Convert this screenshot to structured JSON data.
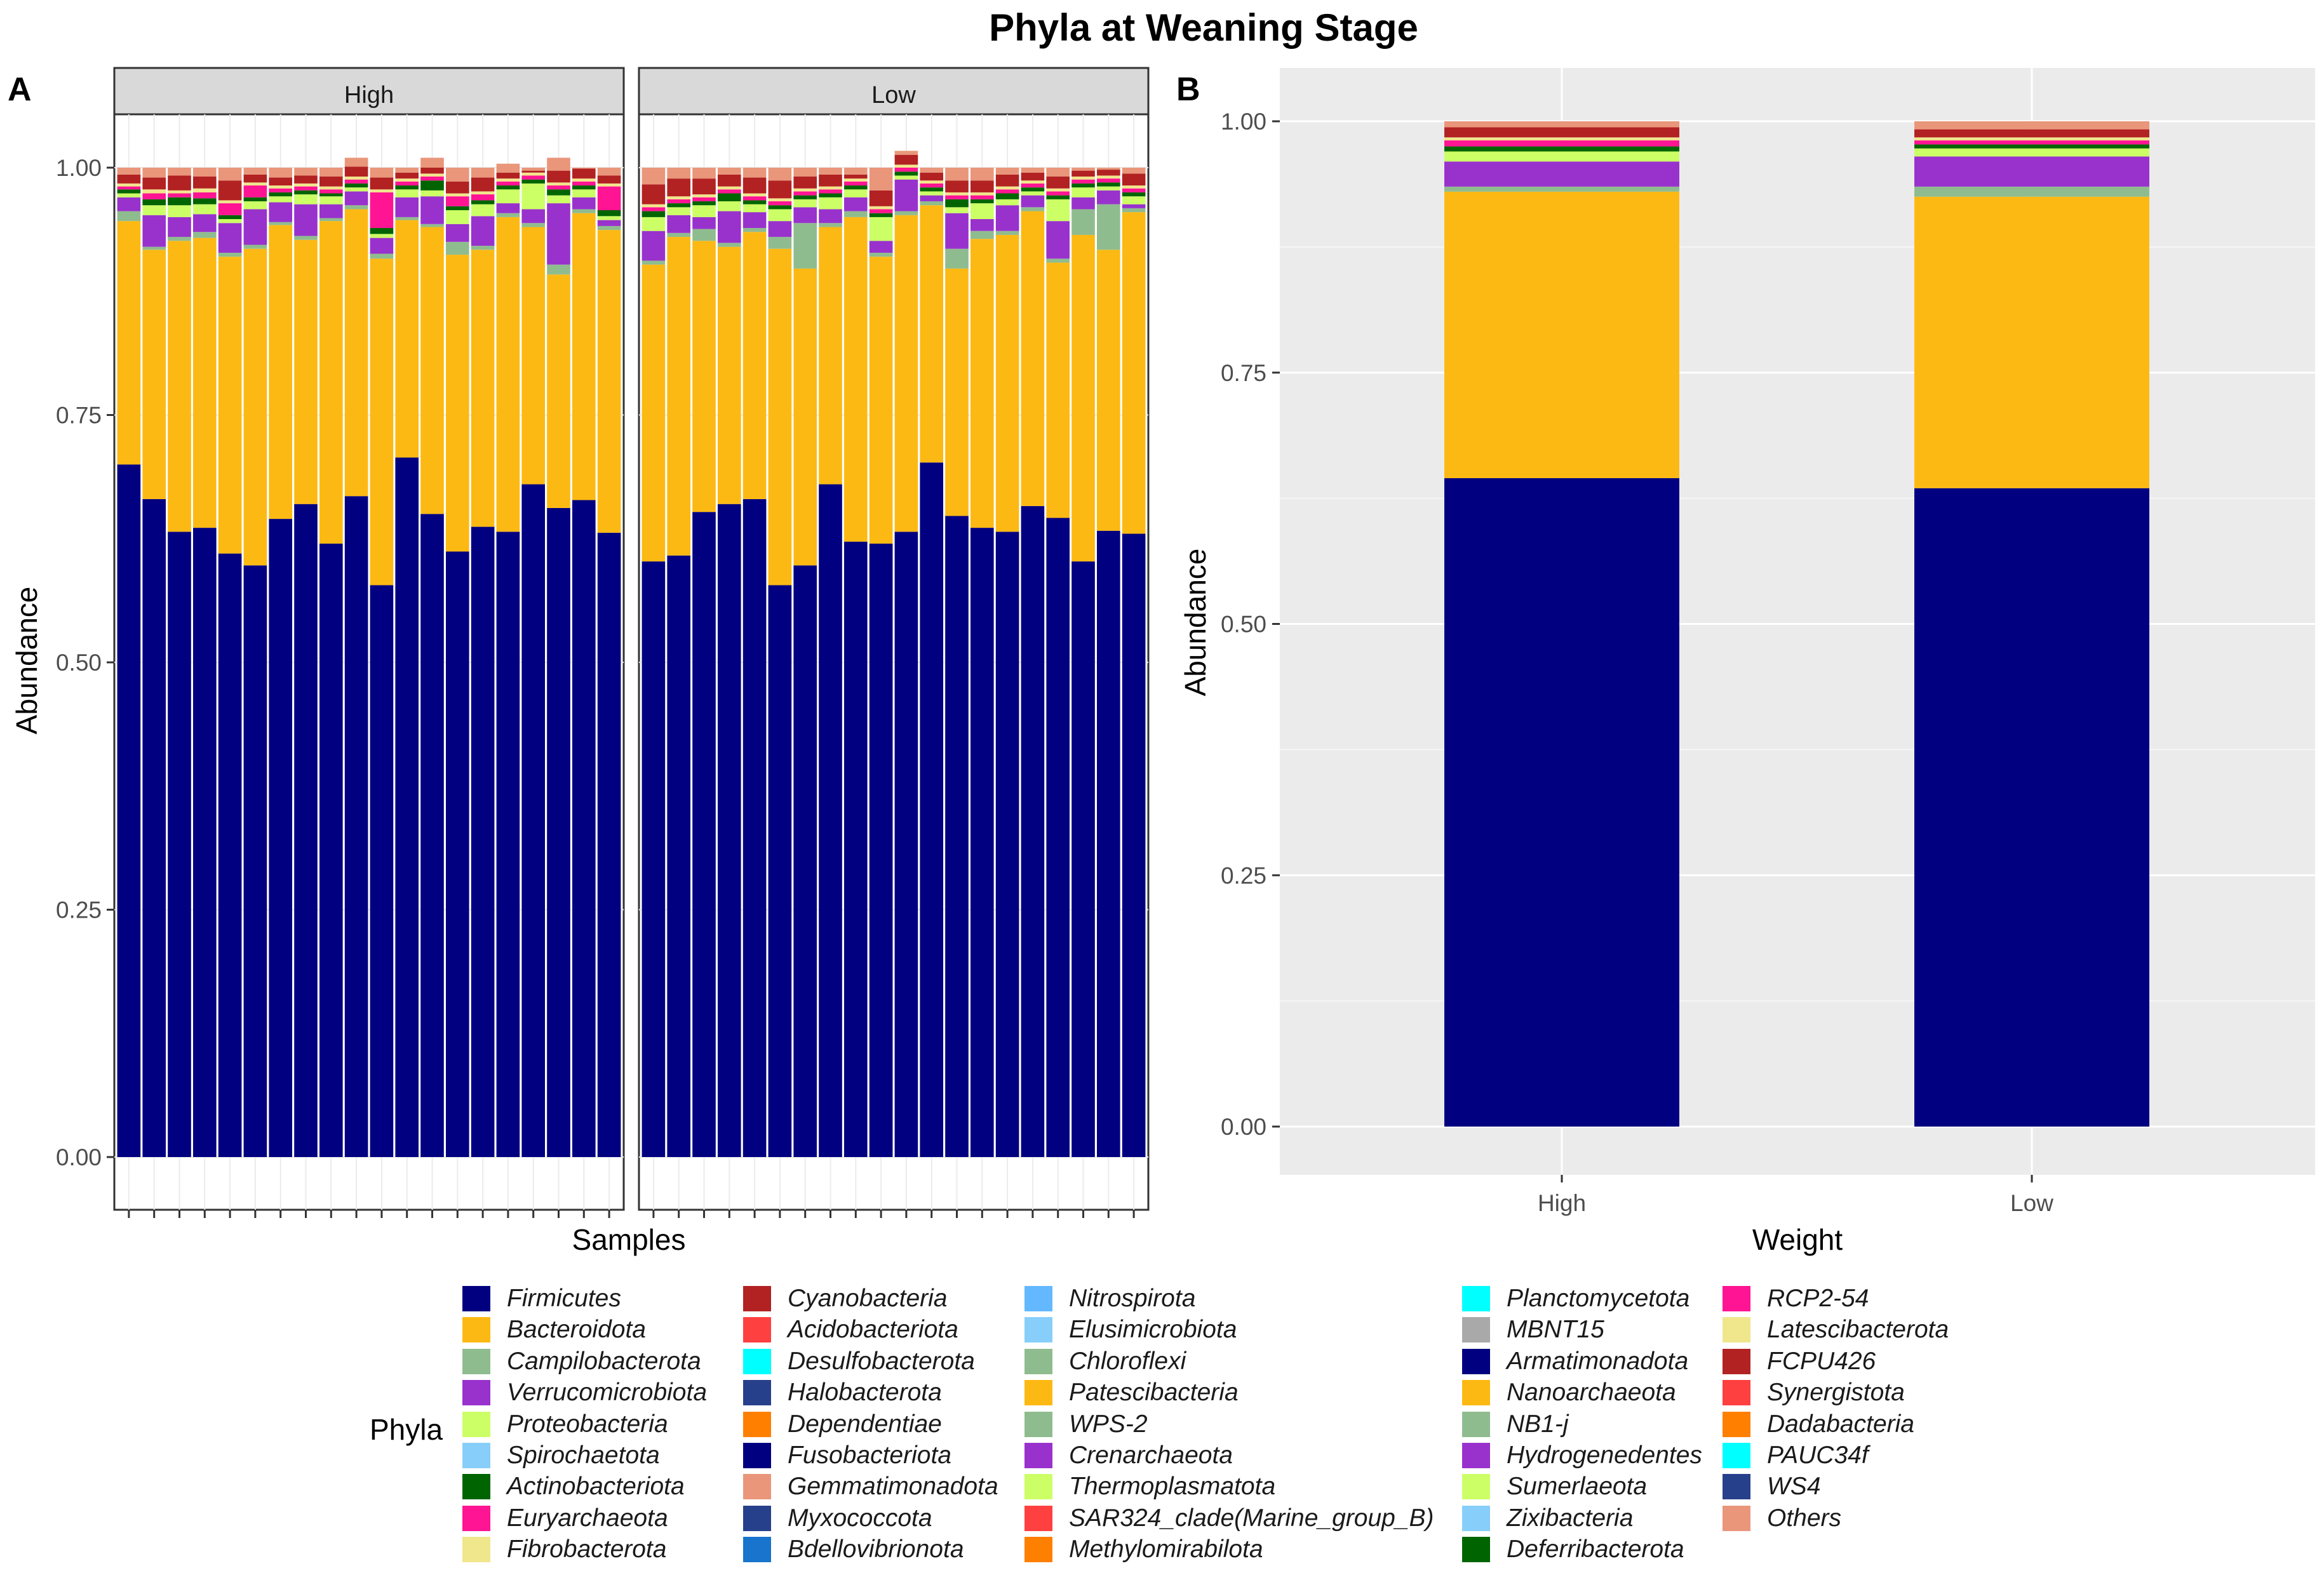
{
  "chart_data": [
    {
      "panel_label": "A",
      "type": "bar",
      "stacked": true,
      "title": "Phyla at Weaning Stage",
      "xlabel": "Samples",
      "ylabel": "Abundance",
      "ylim": [
        0,
        1
      ],
      "yticks": [
        "0.00",
        "0.25",
        "0.50",
        "0.75",
        "1.00"
      ],
      "facets": [
        {
          "name": "High",
          "samples": 20,
          "series": [
            {
              "name": "Firmicutes",
              "values": [
                0.7,
                0.665,
                0.632,
                0.636,
                0.61,
                0.598,
                0.645,
                0.66,
                0.62,
                0.668,
                0.578,
                0.707,
                0.65,
                0.612,
                0.637,
                0.632,
                0.68,
                0.656,
                0.664,
                0.631
              ]
            },
            {
              "name": "Bacteroidota",
              "values": [
                0.246,
                0.252,
                0.294,
                0.293,
                0.3,
                0.32,
                0.297,
                0.267,
                0.326,
                0.29,
                0.33,
                0.24,
                0.29,
                0.3,
                0.28,
                0.318,
                0.26,
                0.236,
                0.29,
                0.306
              ]
            },
            {
              "name": "Campilobacterota",
              "values": [
                0.01,
                0.003,
                0.004,
                0.006,
                0.004,
                0.004,
                0.003,
                0.004,
                0.003,
                0.004,
                0.005,
                0.003,
                0.003,
                0.013,
                0.004,
                0.004,
                0.004,
                0.01,
                0.004,
                0.004
              ]
            },
            {
              "name": "Verrucomicrobiota",
              "values": [
                0.014,
                0.032,
                0.02,
                0.018,
                0.03,
                0.036,
                0.02,
                0.032,
                0.014,
                0.014,
                0.016,
                0.02,
                0.028,
                0.018,
                0.03,
                0.01,
                0.014,
                0.062,
                0.012,
                0.006
              ]
            },
            {
              "name": "Proteobacteria",
              "values": [
                0.004,
                0.01,
                0.012,
                0.01,
                0.004,
                0.008,
                0.006,
                0.01,
                0.008,
                0.004,
                0.004,
                0.008,
                0.006,
                0.014,
                0.012,
                0.014,
                0.026,
                0.008,
                0.008,
                0.004
              ]
            },
            {
              "name": "Actinobacteriota",
              "values": [
                0.004,
                0.006,
                0.008,
                0.006,
                0.004,
                0.004,
                0.004,
                0.004,
                0.003,
                0.004,
                0.006,
                0.004,
                0.01,
                0.004,
                0.004,
                0.004,
                0.004,
                0.006,
                0.004,
                0.006
              ]
            },
            {
              "name": "Euryarchaeota",
              "values": [
                0.003,
                0.006,
                0.004,
                0.006,
                0.012,
                0.012,
                0.004,
                0.004,
                0.004,
                0.004,
                0.036,
                0.004,
                0.004,
                0.01,
                0.006,
                0.004,
                0.004,
                0.004,
                0.004,
                0.024
              ]
            },
            {
              "name": "Fibrobacterota",
              "values": [
                0.003,
                0.004,
                0.003,
                0.004,
                0.003,
                0.003,
                0.003,
                0.003,
                0.003,
                0.003,
                0.003,
                0.003,
                0.003,
                0.003,
                0.003,
                0.003,
                0.003,
                0.003,
                0.003,
                0.003
              ]
            },
            {
              "name": "Cyanobacteria",
              "values": [
                0.009,
                0.012,
                0.015,
                0.012,
                0.02,
                0.008,
                0.008,
                0.008,
                0.01,
                0.01,
                0.012,
                0.006,
                0.006,
                0.012,
                0.014,
                0.006,
                0.002,
                0.012,
                0.01,
                0.008
              ]
            },
            {
              "name": "Others",
              "values": [
                0.007,
                0.01,
                0.008,
                0.009,
                0.013,
                0.007,
                0.01,
                0.008,
                0.009,
                0.009,
                0.01,
                0.005,
                0.01,
                0.014,
                0.01,
                0.009,
                0.003,
                0.013,
                0.001,
                0.008
              ]
            }
          ]
        },
        {
          "name": "Low",
          "samples": 20,
          "series": [
            {
              "name": "Firmicutes",
              "values": [
                0.602,
                0.608,
                0.652,
                0.66,
                0.665,
                0.578,
                0.598,
                0.68,
                0.622,
                0.62,
                0.632,
                0.702,
                0.648,
                0.636,
                0.632,
                0.658,
                0.646,
                0.602,
                0.633,
                0.63
              ]
            },
            {
              "name": "Bacteroidota",
              "values": [
                0.3,
                0.322,
                0.274,
                0.26,
                0.27,
                0.34,
                0.3,
                0.26,
                0.328,
                0.29,
                0.32,
                0.26,
                0.25,
                0.292,
                0.3,
                0.298,
                0.258,
                0.33,
                0.284,
                0.325
              ]
            },
            {
              "name": "Campilobacterota",
              "values": [
                0.004,
                0.004,
                0.012,
                0.004,
                0.004,
                0.012,
                0.046,
                0.004,
                0.006,
                0.004,
                0.004,
                0.004,
                0.02,
                0.008,
                0.004,
                0.004,
                0.004,
                0.026,
                0.046,
                0.004
              ]
            },
            {
              "name": "Verrucomicrobiota",
              "values": [
                0.03,
                0.018,
                0.012,
                0.032,
                0.016,
                0.016,
                0.016,
                0.014,
                0.014,
                0.012,
                0.032,
                0.006,
                0.036,
                0.012,
                0.026,
                0.012,
                0.038,
                0.012,
                0.014,
                0.004
              ]
            },
            {
              "name": "Proteobacteria",
              "values": [
                0.014,
                0.008,
                0.012,
                0.01,
                0.008,
                0.012,
                0.008,
                0.012,
                0.008,
                0.024,
                0.004,
                0.004,
                0.006,
                0.016,
                0.006,
                0.004,
                0.022,
                0.01,
                0.004,
                0.008
              ]
            },
            {
              "name": "Actinobacteriota",
              "values": [
                0.006,
                0.004,
                0.004,
                0.008,
                0.004,
                0.004,
                0.004,
                0.004,
                0.004,
                0.004,
                0.004,
                0.004,
                0.008,
                0.004,
                0.006,
                0.004,
                0.004,
                0.004,
                0.004,
                0.004
              ]
            },
            {
              "name": "Euryarchaeota",
              "values": [
                0.004,
                0.004,
                0.004,
                0.004,
                0.004,
                0.004,
                0.004,
                0.004,
                0.004,
                0.004,
                0.004,
                0.004,
                0.004,
                0.004,
                0.004,
                0.004,
                0.004,
                0.004,
                0.004,
                0.004
              ]
            },
            {
              "name": "Fibrobacterota",
              "values": [
                0.003,
                0.003,
                0.003,
                0.003,
                0.003,
                0.003,
                0.003,
                0.003,
                0.003,
                0.003,
                0.003,
                0.003,
                0.003,
                0.003,
                0.003,
                0.003,
                0.003,
                0.003,
                0.003,
                0.003
              ]
            },
            {
              "name": "Cyanobacteria",
              "values": [
                0.02,
                0.018,
                0.016,
                0.012,
                0.016,
                0.018,
                0.012,
                0.012,
                0.004,
                0.016,
                0.01,
                0.008,
                0.012,
                0.012,
                0.012,
                0.008,
                0.012,
                0.006,
                0.006,
                0.012
              ]
            },
            {
              "name": "Others",
              "values": [
                0.017,
                0.011,
                0.011,
                0.007,
                0.01,
                0.013,
                0.009,
                0.007,
                0.007,
                0.023,
                0.004,
                0.005,
                0.013,
                0.013,
                0.007,
                0.005,
                0.009,
                0.003,
                0.002,
                0.006
              ]
            }
          ]
        }
      ]
    },
    {
      "panel_label": "B",
      "type": "bar",
      "stacked": true,
      "xlabel": "Weight",
      "ylabel": "Abundance",
      "ylim": [
        0,
        1
      ],
      "yticks": [
        "0.00",
        "0.25",
        "0.50",
        "0.75",
        "1.00"
      ],
      "categories": [
        "High",
        "Low"
      ],
      "series": [
        {
          "name": "Firmicutes",
          "values": [
            0.645,
            0.635
          ]
        },
        {
          "name": "Bacteroidota",
          "values": [
            0.285,
            0.29
          ]
        },
        {
          "name": "Campilobacterota",
          "values": [
            0.005,
            0.01
          ]
        },
        {
          "name": "Verrucomicrobiota",
          "values": [
            0.025,
            0.03
          ]
        },
        {
          "name": "Proteobacteria",
          "values": [
            0.01,
            0.008
          ]
        },
        {
          "name": "Actinobacteriota",
          "values": [
            0.005,
            0.004
          ]
        },
        {
          "name": "Euryarchaeota",
          "values": [
            0.006,
            0.004
          ]
        },
        {
          "name": "Fibrobacterota",
          "values": [
            0.003,
            0.003
          ]
        },
        {
          "name": "Cyanobacteria",
          "values": [
            0.01,
            0.008
          ]
        },
        {
          "name": "Others",
          "values": [
            0.006,
            0.008
          ]
        }
      ]
    }
  ],
  "legend": {
    "title": "Phyla",
    "columns": [
      [
        {
          "label": "Firmicutes",
          "color": "#000080"
        },
        {
          "label": "Bacteroidota",
          "color": "#FDB913"
        },
        {
          "label": "Campilobacterota",
          "color": "#8FBC8F"
        },
        {
          "label": "Verrucomicrobiota",
          "color": "#9932CC"
        },
        {
          "label": "Proteobacteria",
          "color": "#CCFF66"
        },
        {
          "label": "Spirochaetota",
          "color": "#87CEFA"
        },
        {
          "label": "Actinobacteriota",
          "color": "#006400"
        },
        {
          "label": "Euryarchaeota",
          "color": "#FF1493"
        },
        {
          "label": "Fibrobacterota",
          "color": "#F0E68C"
        }
      ],
      [
        {
          "label": "Cyanobacteria",
          "color": "#B22222"
        },
        {
          "label": "Acidobacteriota",
          "color": "#FF4040"
        },
        {
          "label": "Desulfobacterota",
          "color": "#00FFFF"
        },
        {
          "label": "Halobacterota",
          "color": "#27408B"
        },
        {
          "label": "Dependentiae",
          "color": "#FF7F00"
        },
        {
          "label": "Fusobacteriota",
          "color": "#000080"
        },
        {
          "label": "Gemmatimonadota",
          "color": "#E9967A"
        },
        {
          "label": "Myxococcota",
          "color": "#27408B"
        },
        {
          "label": "Bdellovibrionota",
          "color": "#1874CD"
        }
      ],
      [
        {
          "label": "Nitrospirota",
          "color": "#63B8FF"
        },
        {
          "label": "Elusimicrobiota",
          "color": "#87CEFA"
        },
        {
          "label": "Chloroflexi",
          "color": "#8FBC8F"
        },
        {
          "label": "Patescibacteria",
          "color": "#FDB913"
        },
        {
          "label": "WPS-2",
          "color": "#8FBC8F"
        },
        {
          "label": "Crenarchaeota",
          "color": "#9932CC"
        },
        {
          "label": "Thermoplasmatota",
          "color": "#CCFF66"
        },
        {
          "label": "SAR324_clade(Marine_group_B)",
          "color": "#FF4040"
        },
        {
          "label": "Methylomirabilota",
          "color": "#FF7F00"
        }
      ],
      [
        {
          "label": "Planctomycetota",
          "color": "#00FFFF"
        },
        {
          "label": "MBNT15",
          "color": "#A9A9A9"
        },
        {
          "label": "Armatimonadota",
          "color": "#000080"
        },
        {
          "label": "Nanoarchaeota",
          "color": "#FDB913"
        },
        {
          "label": "NB1-j",
          "color": "#8FBC8F"
        },
        {
          "label": "Hydrogenedentes",
          "color": "#9932CC"
        },
        {
          "label": "Sumerlaeota",
          "color": "#CCFF66"
        },
        {
          "label": "Zixibacteria",
          "color": "#87CEFA"
        },
        {
          "label": "Deferribacterota",
          "color": "#006400"
        }
      ],
      [
        {
          "label": "RCP2-54",
          "color": "#FF1493"
        },
        {
          "label": "Latescibacterota",
          "color": "#F0E68C"
        },
        {
          "label": "FCPU426",
          "color": "#B22222"
        },
        {
          "label": "Synergistota",
          "color": "#FF4040"
        },
        {
          "label": "Dadabacteria",
          "color": "#FF7F00"
        },
        {
          "label": "PAUC34f",
          "color": "#00FFFF"
        },
        {
          "label": "WS4",
          "color": "#27408B"
        },
        {
          "label": "Others",
          "color": "#E9967A"
        }
      ]
    ]
  }
}
